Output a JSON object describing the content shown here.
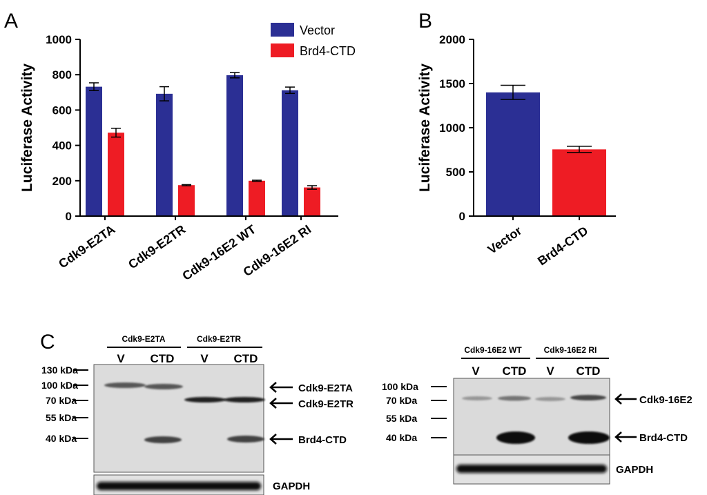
{
  "panel_labels": {
    "a": "A",
    "b": "B",
    "c": "C"
  },
  "colors": {
    "vector": "#2b2f94",
    "brd4": "#ee1c24",
    "axis": "#000000",
    "blot_bg": "#dcdcdc",
    "band": "#1a1a1a"
  },
  "chart_data": [
    {
      "type": "bar",
      "panel": "A",
      "title": "",
      "ylabel": "Luciferase Activity",
      "xlabel": "",
      "ylim": [
        0,
        1000
      ],
      "yticks": [
        "0",
        "200",
        "400",
        "600",
        "800",
        "1000"
      ],
      "ytick_values": [
        0,
        200,
        400,
        600,
        800,
        1000
      ],
      "categories": [
        "Cdk9-E2TA",
        "Cdk9-E2TR",
        "Cdk9-16E2 WT",
        "Cdk9-16E2 RI"
      ],
      "legend_position": "top-right",
      "series": [
        {
          "name": "Vector",
          "color": "#2b2f94",
          "values": [
            732,
            692,
            797,
            712
          ],
          "errors": [
            22,
            40,
            15,
            18
          ]
        },
        {
          "name": "Brd4-CTD",
          "color": "#ee1c24",
          "values": [
            472,
            175,
            200,
            162
          ],
          "errors": [
            25,
            3,
            3,
            10
          ]
        }
      ]
    },
    {
      "type": "bar",
      "panel": "B",
      "title": "",
      "ylabel": "Luciferase Activity",
      "xlabel": "",
      "ylim": [
        0,
        2000
      ],
      "yticks": [
        "0",
        "500",
        "1000",
        "1500",
        "2000"
      ],
      "ytick_values": [
        0,
        500,
        1000,
        1500,
        2000
      ],
      "categories": [
        "Vector",
        "Brd4-CTD"
      ],
      "series": [
        {
          "name": "luciferase",
          "colors": [
            "#2b2f94",
            "#ee1c24"
          ],
          "values": [
            1400,
            755
          ],
          "errors": [
            80,
            35
          ]
        }
      ]
    }
  ],
  "blot_left": {
    "groups": [
      {
        "label": "Cdk9-E2TA",
        "lanes": [
          "V",
          "CTD"
        ]
      },
      {
        "label": "Cdk9-E2TR",
        "lanes": [
          "V",
          "CTD"
        ]
      }
    ],
    "markers": [
      "130 kDa",
      "100 kDa",
      "70 kDa",
      "55 kDa",
      "40 kDa"
    ],
    "bands": [
      "Cdk9-E2TA",
      "Cdk9-E2TR",
      "Brd4-CTD"
    ],
    "loading": "GAPDH"
  },
  "blot_right": {
    "groups": [
      {
        "label": "Cdk9-16E2 WT",
        "lanes": [
          "V",
          "CTD"
        ]
      },
      {
        "label": "Cdk9-16E2 RI",
        "lanes": [
          "V",
          "CTD"
        ]
      }
    ],
    "markers": [
      "100 kDa",
      "70 kDa",
      "55 kDa",
      "40 kDa"
    ],
    "bands": [
      "Cdk9-16E2",
      "Brd4-CTD"
    ],
    "loading": "GAPDH"
  }
}
